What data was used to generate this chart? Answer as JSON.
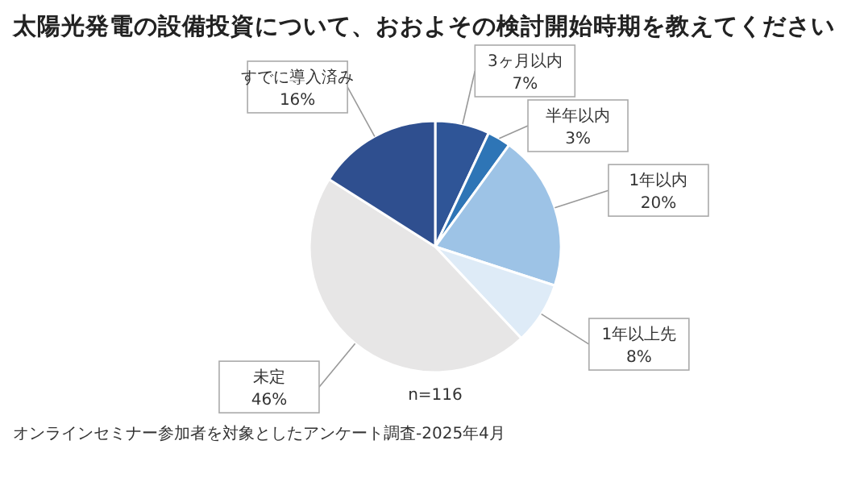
{
  "chart_data": {
    "type": "pie",
    "title": "太陽光発電の設備投資について、おおよその検討開始時期を教えてください",
    "categories": [
      "3ヶ月以内",
      "半年以内",
      "1年以内",
      "1年以上先",
      "未定",
      "すでに導入済み"
    ],
    "values": [
      7,
      3,
      20,
      8,
      46,
      16
    ],
    "colors": [
      "#2f5597",
      "#2e75b6",
      "#9dc3e6",
      "#deebf7",
      "#e7e6e6",
      "#2f4f8f"
    ],
    "value_labels": [
      "7%",
      "3%",
      "20%",
      "8%",
      "46%",
      "16%"
    ],
    "annotations": [
      "n=116",
      "オンラインセミナー参加者を対象としたアンケート調査-2025年4月"
    ]
  }
}
